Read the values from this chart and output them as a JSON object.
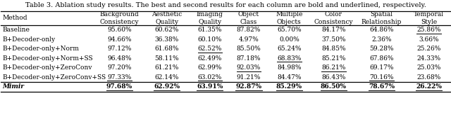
{
  "title": "Table 3. Ablation study results. The best and second results for each column are bold and underlined, respectively.",
  "columns": [
    "Method",
    "Background\nConsistency",
    "Aesthetic\nQuality",
    "Imaging\nQuality",
    "Object\nClass",
    "Multiple\nObjects",
    "Color\nConsistency",
    "Spatial\nRelationship",
    "Temporal\nStyle"
  ],
  "rows": [
    [
      "Baseline",
      "95.60%",
      "60.62%",
      "61.35%",
      "87.82%",
      "65.70%",
      "84.17%",
      "64.86%",
      "25.86%"
    ],
    [
      "B+Decoder-only",
      "94.66%",
      "36.38%",
      "60.10%",
      "4.97%",
      "0.00%",
      "37.50%",
      "2.36%",
      "3.66%"
    ],
    [
      "B+Decoder-only+Norm",
      "97.12%",
      "61.68%",
      "62.52%",
      "85.50%",
      "65.24%",
      "84.85%",
      "59.28%",
      "25.26%"
    ],
    [
      "B+Decoder-only+Norm+SS",
      "96.48%",
      "58.11%",
      "62.49%",
      "87.18%",
      "68.83%",
      "85.21%",
      "67.86%",
      "24.33%"
    ],
    [
      "B+Decoder-only+ZeroConv",
      "97.20%",
      "61.21%",
      "62.99%",
      "92.03%",
      "84.98%",
      "86.21%",
      "69.17%",
      "25.03%"
    ],
    [
      "B+Decoder-only+ZeroConv+SS",
      "97.33%",
      "62.14%",
      "63.02%",
      "91.21%",
      "84.47%",
      "86.43%",
      "70.16%",
      "23.68%"
    ],
    [
      "Mimir",
      "97.68%",
      "62.92%",
      "63.91%",
      "92.87%",
      "85.29%",
      "86.50%",
      "78.67%",
      "26.22%"
    ]
  ],
  "bold_rows": [
    6
  ],
  "underline_cells": [
    [
      0,
      8
    ],
    [
      2,
      3
    ],
    [
      3,
      5
    ],
    [
      4,
      4
    ],
    [
      4,
      6
    ],
    [
      5,
      1
    ],
    [
      5,
      3
    ],
    [
      5,
      7
    ],
    [
      6,
      1
    ],
    [
      6,
      2
    ],
    [
      6,
      3
    ],
    [
      6,
      4
    ],
    [
      6,
      5
    ],
    [
      6,
      6
    ],
    [
      6,
      7
    ],
    [
      6,
      8
    ]
  ],
  "col_widths_rel": [
    1.85,
    1.0,
    0.88,
    0.82,
    0.72,
    0.88,
    0.88,
    1.02,
    0.85
  ],
  "bg_color": "#ffffff",
  "header_fontsize": 6.5,
  "cell_fontsize": 6.5,
  "title_fontsize": 7.0
}
